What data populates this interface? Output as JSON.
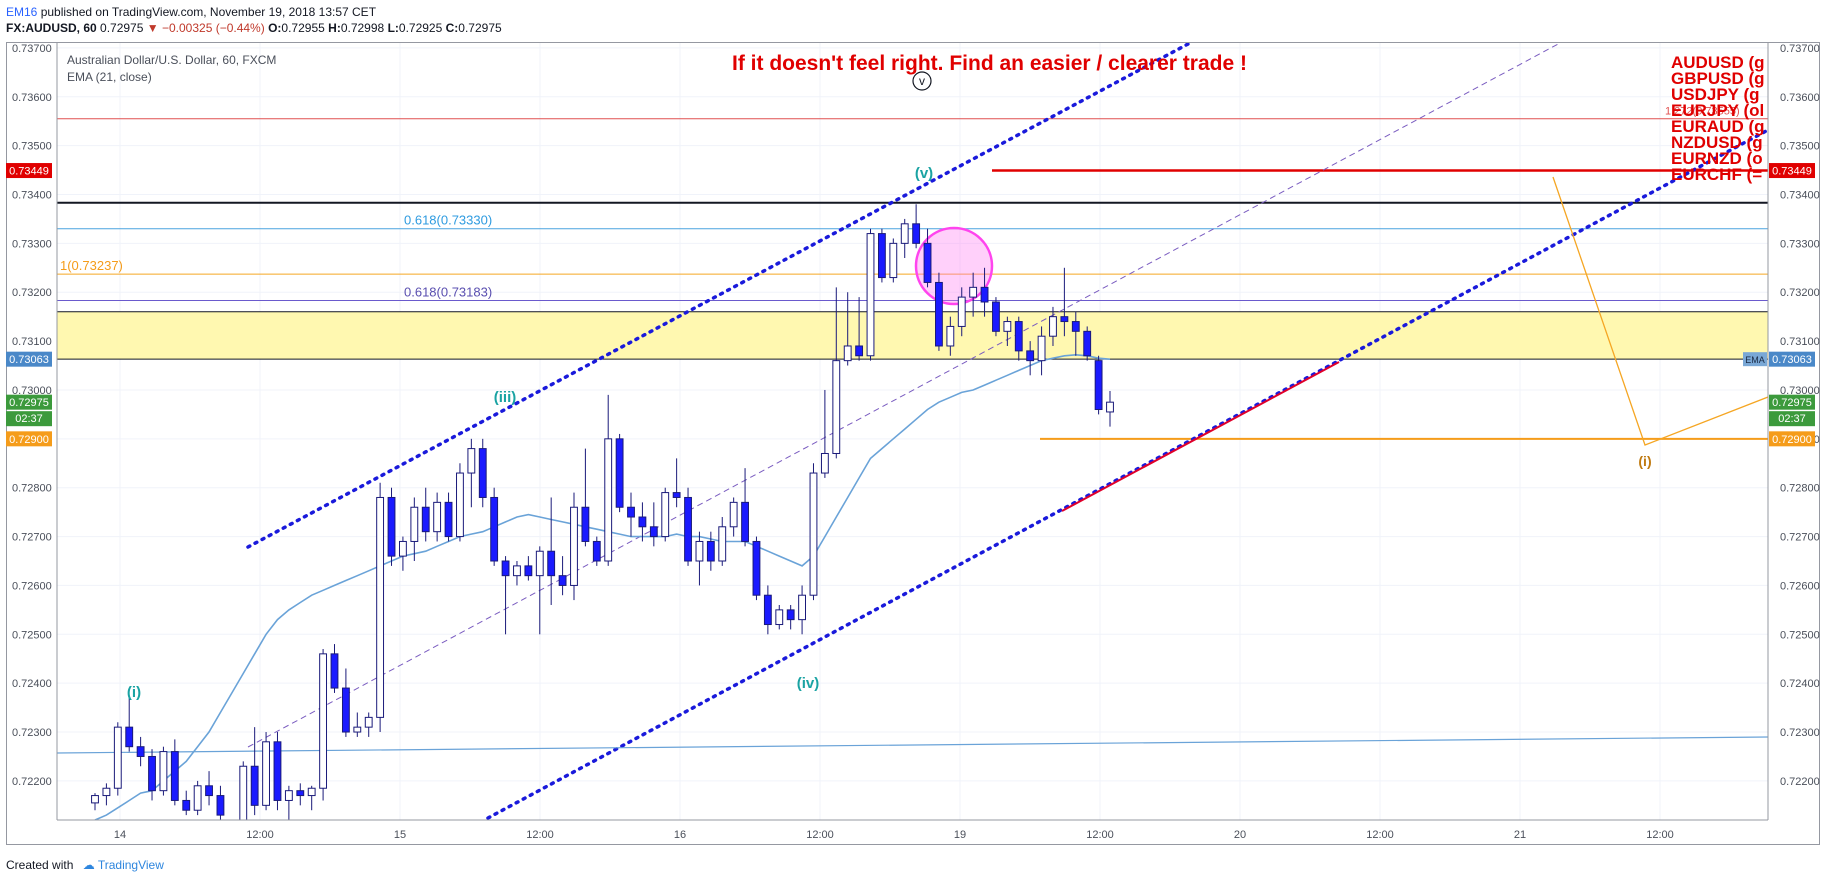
{
  "header": {
    "author": "EM16",
    "published": "published on TradingView.com, November 19, 2018 13:57 CET",
    "symbol": "FX:AUDUSD, 60",
    "last": "0.72975",
    "change": "▼ −0.00325 (−0.44%)",
    "o_label": "O:",
    "o": "0.72955",
    "h_label": "H:",
    "h": "0.72998",
    "l_label": "L:",
    "l": "0.72925",
    "c_label": "C:",
    "c": "0.72975"
  },
  "legend": {
    "instrument": "Australian Dollar/U.S. Dollar, 60, FXCM",
    "indicator": "EMA (21, close)"
  },
  "annotation": {
    "headline": "If it doesn't feel right. Find an easier / clearer trade !",
    "circle_label": "v",
    "pairs": [
      "AUDUSD (g",
      "GBPUSD (g",
      "USDJPY (g",
      "EURJPY (ol",
      "EURAUD (g",
      "NZDUSD (g",
      "EURNZD (o",
      "EURCHF (="
    ]
  },
  "colors": {
    "up_candle": "#ffffff",
    "down_candle": "#1a1aff",
    "candle_border": "#1a1a7a",
    "ema": "#6aa3d8",
    "channel": "#1a1adb",
    "zone": "#fff8b0",
    "red_level": "#e00000",
    "orange_level": "#f59c1a",
    "fib_blue": "#4aa3df",
    "fib_purple": "#6a5acd",
    "wave_teal": "#1aa3a3",
    "headline": "#e00000",
    "ellipse": "#ff44ee"
  },
  "chart_data": {
    "type": "candlestick",
    "title": "Australian Dollar/U.S. Dollar, 60, FXCM",
    "ylim": [
      0.7212,
      0.7371
    ],
    "y_ticks": [
      "0.72200",
      "0.72300",
      "0.72400",
      "0.72500",
      "0.72600",
      "0.72700",
      "0.72800",
      "0.72900",
      "0.73000",
      "0.73100",
      "0.73200",
      "0.73300",
      "0.73400",
      "0.73500",
      "0.73600",
      "0.73700"
    ],
    "x_labels": [
      "14",
      "12:00",
      "15",
      "12:00",
      "16",
      "12:00",
      "19",
      "12:00",
      "20",
      "12:00",
      "21",
      "12:00"
    ],
    "candles": [
      {
        "o": 0.72155,
        "h": 0.72175,
        "l": 0.7214,
        "c": 0.7217
      },
      {
        "o": 0.7217,
        "h": 0.72195,
        "l": 0.7215,
        "c": 0.72185
      },
      {
        "o": 0.72185,
        "h": 0.7232,
        "l": 0.7217,
        "c": 0.7231
      },
      {
        "o": 0.7231,
        "h": 0.72375,
        "l": 0.7226,
        "c": 0.7227
      },
      {
        "o": 0.7227,
        "h": 0.7229,
        "l": 0.7223,
        "c": 0.7225
      },
      {
        "o": 0.7225,
        "h": 0.72265,
        "l": 0.7216,
        "c": 0.7218
      },
      {
        "o": 0.7218,
        "h": 0.7227,
        "l": 0.7217,
        "c": 0.7226
      },
      {
        "o": 0.7226,
        "h": 0.72285,
        "l": 0.7215,
        "c": 0.7216
      },
      {
        "o": 0.7216,
        "h": 0.7218,
        "l": 0.7213,
        "c": 0.7214
      },
      {
        "o": 0.7214,
        "h": 0.722,
        "l": 0.7213,
        "c": 0.7219
      },
      {
        "o": 0.7219,
        "h": 0.7222,
        "l": 0.7215,
        "c": 0.7217
      },
      {
        "o": 0.7217,
        "h": 0.7219,
        "l": 0.7212,
        "c": 0.7213
      },
      {
        "o": 0.7208,
        "h": 0.721,
        "l": 0.7206,
        "c": 0.7209
      },
      {
        "o": 0.7209,
        "h": 0.7224,
        "l": 0.7208,
        "c": 0.7223
      },
      {
        "o": 0.7223,
        "h": 0.7231,
        "l": 0.7213,
        "c": 0.7215
      },
      {
        "o": 0.7215,
        "h": 0.723,
        "l": 0.7214,
        "c": 0.7228
      },
      {
        "o": 0.7228,
        "h": 0.723,
        "l": 0.7214,
        "c": 0.7216
      },
      {
        "o": 0.7216,
        "h": 0.7219,
        "l": 0.7212,
        "c": 0.7218
      },
      {
        "o": 0.7218,
        "h": 0.72195,
        "l": 0.7215,
        "c": 0.7217
      },
      {
        "o": 0.7217,
        "h": 0.7219,
        "l": 0.7214,
        "c": 0.72185
      },
      {
        "o": 0.72185,
        "h": 0.7247,
        "l": 0.7216,
        "c": 0.7246
      },
      {
        "o": 0.7246,
        "h": 0.7248,
        "l": 0.7238,
        "c": 0.7239
      },
      {
        "o": 0.7239,
        "h": 0.7243,
        "l": 0.7229,
        "c": 0.723
      },
      {
        "o": 0.723,
        "h": 0.7234,
        "l": 0.7229,
        "c": 0.7231
      },
      {
        "o": 0.7231,
        "h": 0.7234,
        "l": 0.7229,
        "c": 0.7233
      },
      {
        "o": 0.7233,
        "h": 0.7281,
        "l": 0.723,
        "c": 0.7278
      },
      {
        "o": 0.7278,
        "h": 0.728,
        "l": 0.7264,
        "c": 0.7266
      },
      {
        "o": 0.7266,
        "h": 0.727,
        "l": 0.7263,
        "c": 0.7269
      },
      {
        "o": 0.7269,
        "h": 0.7278,
        "l": 0.7265,
        "c": 0.7276
      },
      {
        "o": 0.7276,
        "h": 0.728,
        "l": 0.7269,
        "c": 0.7271
      },
      {
        "o": 0.7271,
        "h": 0.7279,
        "l": 0.7269,
        "c": 0.7277
      },
      {
        "o": 0.7277,
        "h": 0.7279,
        "l": 0.7269,
        "c": 0.727
      },
      {
        "o": 0.727,
        "h": 0.7285,
        "l": 0.7269,
        "c": 0.7283
      },
      {
        "o": 0.7283,
        "h": 0.729,
        "l": 0.7276,
        "c": 0.7288
      },
      {
        "o": 0.7288,
        "h": 0.729,
        "l": 0.7276,
        "c": 0.7278
      },
      {
        "o": 0.7278,
        "h": 0.728,
        "l": 0.7264,
        "c": 0.7265
      },
      {
        "o": 0.7265,
        "h": 0.7266,
        "l": 0.725,
        "c": 0.7262
      },
      {
        "o": 0.7262,
        "h": 0.7265,
        "l": 0.726,
        "c": 0.7264
      },
      {
        "o": 0.7264,
        "h": 0.7266,
        "l": 0.7261,
        "c": 0.7262
      },
      {
        "o": 0.7262,
        "h": 0.7268,
        "l": 0.725,
        "c": 0.7267
      },
      {
        "o": 0.7267,
        "h": 0.7278,
        "l": 0.7256,
        "c": 0.7262
      },
      {
        "o": 0.7262,
        "h": 0.7266,
        "l": 0.7258,
        "c": 0.726
      },
      {
        "o": 0.726,
        "h": 0.7279,
        "l": 0.7257,
        "c": 0.7276
      },
      {
        "o": 0.7276,
        "h": 0.7288,
        "l": 0.7268,
        "c": 0.7269
      },
      {
        "o": 0.7269,
        "h": 0.727,
        "l": 0.7264,
        "c": 0.7265
      },
      {
        "o": 0.7265,
        "h": 0.7299,
        "l": 0.7264,
        "c": 0.729
      },
      {
        "o": 0.729,
        "h": 0.7291,
        "l": 0.7275,
        "c": 0.7276
      },
      {
        "o": 0.7276,
        "h": 0.7279,
        "l": 0.727,
        "c": 0.7274
      },
      {
        "o": 0.7274,
        "h": 0.7277,
        "l": 0.7269,
        "c": 0.7272
      },
      {
        "o": 0.7272,
        "h": 0.7277,
        "l": 0.7268,
        "c": 0.727
      },
      {
        "o": 0.727,
        "h": 0.728,
        "l": 0.7269,
        "c": 0.7279
      },
      {
        "o": 0.7279,
        "h": 0.7286,
        "l": 0.7276,
        "c": 0.7278
      },
      {
        "o": 0.7278,
        "h": 0.728,
        "l": 0.7264,
        "c": 0.7265
      },
      {
        "o": 0.7265,
        "h": 0.7271,
        "l": 0.726,
        "c": 0.7269
      },
      {
        "o": 0.7269,
        "h": 0.7271,
        "l": 0.7263,
        "c": 0.7265
      },
      {
        "o": 0.7265,
        "h": 0.7274,
        "l": 0.7264,
        "c": 0.7272
      },
      {
        "o": 0.7272,
        "h": 0.7278,
        "l": 0.727,
        "c": 0.7277
      },
      {
        "o": 0.7277,
        "h": 0.7284,
        "l": 0.7268,
        "c": 0.7269
      },
      {
        "o": 0.7269,
        "h": 0.727,
        "l": 0.7257,
        "c": 0.7258
      },
      {
        "o": 0.7258,
        "h": 0.726,
        "l": 0.725,
        "c": 0.7252
      },
      {
        "o": 0.7252,
        "h": 0.7256,
        "l": 0.7251,
        "c": 0.7255
      },
      {
        "o": 0.7255,
        "h": 0.7256,
        "l": 0.7251,
        "c": 0.7253
      },
      {
        "o": 0.7253,
        "h": 0.726,
        "l": 0.725,
        "c": 0.7258
      },
      {
        "o": 0.7258,
        "h": 0.7285,
        "l": 0.7257,
        "c": 0.7283
      },
      {
        "o": 0.7283,
        "h": 0.73,
        "l": 0.7282,
        "c": 0.7287
      },
      {
        "o": 0.7287,
        "h": 0.7321,
        "l": 0.7286,
        "c": 0.7306
      },
      {
        "o": 0.7306,
        "h": 0.732,
        "l": 0.7305,
        "c": 0.7309
      },
      {
        "o": 0.7309,
        "h": 0.7319,
        "l": 0.7306,
        "c": 0.7307
      },
      {
        "o": 0.7307,
        "h": 0.7333,
        "l": 0.7306,
        "c": 0.7332
      },
      {
        "o": 0.7332,
        "h": 0.7333,
        "l": 0.7322,
        "c": 0.7323
      },
      {
        "o": 0.7323,
        "h": 0.7331,
        "l": 0.7322,
        "c": 0.733
      },
      {
        "o": 0.733,
        "h": 0.7335,
        "l": 0.7327,
        "c": 0.7334
      },
      {
        "o": 0.7334,
        "h": 0.7338,
        "l": 0.7329,
        "c": 0.733
      },
      {
        "o": 0.733,
        "h": 0.7333,
        "l": 0.7321,
        "c": 0.7322
      },
      {
        "o": 0.7322,
        "h": 0.7324,
        "l": 0.7308,
        "c": 0.7309
      },
      {
        "o": 0.7309,
        "h": 0.7315,
        "l": 0.7307,
        "c": 0.7313
      },
      {
        "o": 0.7313,
        "h": 0.7321,
        "l": 0.7311,
        "c": 0.7319
      },
      {
        "o": 0.7319,
        "h": 0.7324,
        "l": 0.7315,
        "c": 0.7321
      },
      {
        "o": 0.7321,
        "h": 0.7325,
        "l": 0.7315,
        "c": 0.7318
      },
      {
        "o": 0.7318,
        "h": 0.7319,
        "l": 0.7311,
        "c": 0.7312
      },
      {
        "o": 0.7312,
        "h": 0.7315,
        "l": 0.7309,
        "c": 0.7314
      },
      {
        "o": 0.7314,
        "h": 0.7315,
        "l": 0.7306,
        "c": 0.7308
      },
      {
        "o": 0.7308,
        "h": 0.731,
        "l": 0.7303,
        "c": 0.7306
      },
      {
        "o": 0.7306,
        "h": 0.7313,
        "l": 0.7303,
        "c": 0.7311
      },
      {
        "o": 0.7311,
        "h": 0.7317,
        "l": 0.7309,
        "c": 0.7315
      },
      {
        "o": 0.7315,
        "h": 0.7325,
        "l": 0.7311,
        "c": 0.7314
      },
      {
        "o": 0.7314,
        "h": 0.7316,
        "l": 0.7307,
        "c": 0.7312
      },
      {
        "o": 0.7312,
        "h": 0.7313,
        "l": 0.7306,
        "c": 0.7307
      },
      {
        "o": 0.7306,
        "h": 0.7307,
        "l": 0.7295,
        "c": 0.7296
      },
      {
        "o": 0.72955,
        "h": 0.72998,
        "l": 0.72925,
        "c": 0.72975
      }
    ],
    "ema21": [
      0.7212,
      0.7213,
      0.72145,
      0.7216,
      0.72175,
      0.7218,
      0.722,
      0.7222,
      0.7224,
      0.7227,
      0.723,
      0.7234,
      0.7238,
      0.7242,
      0.7246,
      0.725,
      0.7253,
      0.7255,
      0.72565,
      0.7258,
      0.7259,
      0.726,
      0.7261,
      0.7262,
      0.7263,
      0.7264,
      0.7265,
      0.7266,
      0.72665,
      0.7267,
      0.7268,
      0.7269,
      0.727,
      0.72705,
      0.7271,
      0.7272,
      0.7273,
      0.7274,
      0.72745,
      0.7274,
      0.72735,
      0.7273,
      0.72725,
      0.7272,
      0.72715,
      0.7271,
      0.72705,
      0.727,
      0.727,
      0.727,
      0.727,
      0.72705,
      0.727,
      0.727,
      0.72695,
      0.7269,
      0.7269,
      0.7269,
      0.7268,
      0.7267,
      0.7266,
      0.7265,
      0.7264,
      0.7266,
      0.727,
      0.7274,
      0.7278,
      0.7282,
      0.7286,
      0.7288,
      0.729,
      0.7292,
      0.7294,
      0.7296,
      0.72975,
      0.72985,
      0.72995,
      0.73,
      0.7301,
      0.7302,
      0.7303,
      0.7304,
      0.7305,
      0.7306,
      0.73065,
      0.7307,
      0.73072,
      0.7307,
      0.73065,
      0.73063
    ],
    "horizontal_levels": [
      {
        "label": "1.272(0.73555)",
        "value": 0.73555,
        "role": "thin red line"
      },
      {
        "label": "0.73449",
        "value": 0.73449,
        "role": "red resistance"
      },
      {
        "label": "",
        "value": 0.73383,
        "role": "black line"
      },
      {
        "label": "0.618(0.73330)",
        "value": 0.7333,
        "role": "fib blue"
      },
      {
        "label": "1(0.73237)",
        "value": 0.73237,
        "role": "fib orange"
      },
      {
        "label": "0.618(0.73183)",
        "value": 0.73183,
        "role": "fib purple"
      },
      {
        "label": "",
        "value": 0.7316,
        "role": "zone top"
      },
      {
        "label": "",
        "value": 0.73063,
        "role": "zone bottom"
      },
      {
        "label": "0.72900",
        "value": 0.729,
        "role": "orange support"
      }
    ],
    "price_tags": {
      "resistance": "0.73449",
      "ema": "0.73063",
      "ema_label": "EMA",
      "last_price": "0.72975",
      "countdown": "02:37",
      "support": "0.72900"
    },
    "wave_labels": [
      "(i)",
      "(iii)",
      "(iv)",
      "(v)",
      "(i)"
    ]
  }
}
